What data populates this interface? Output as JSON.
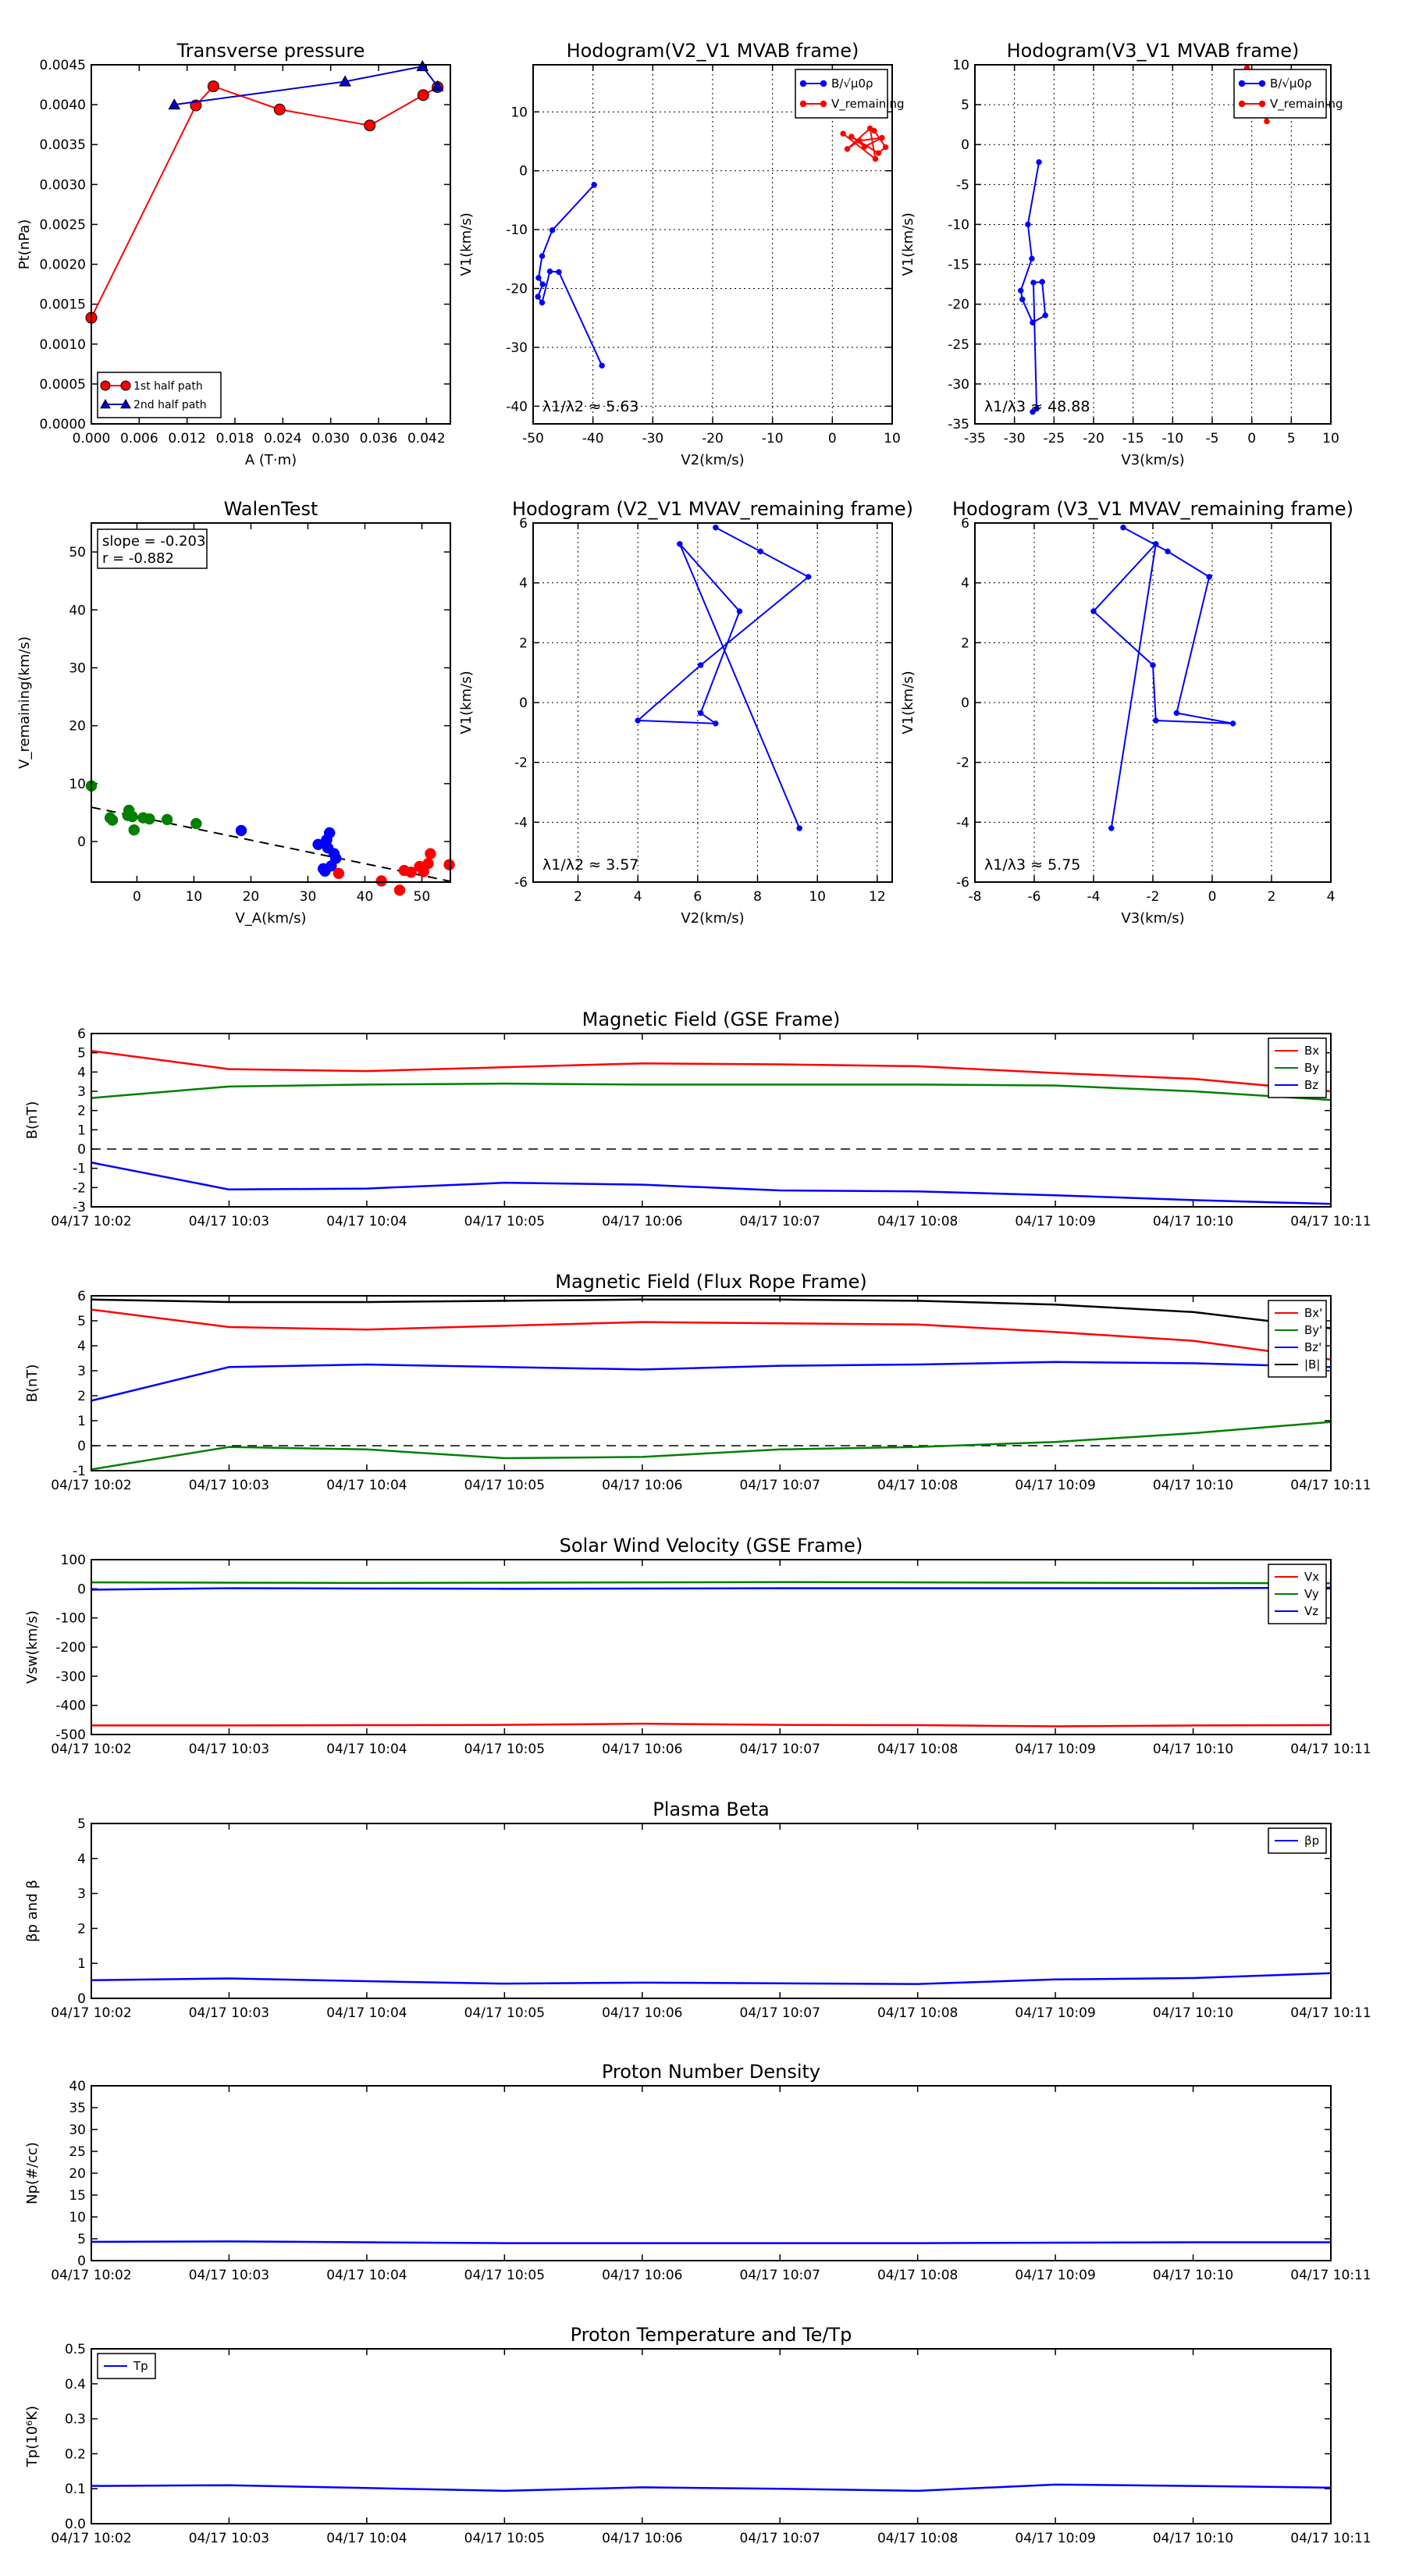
{
  "chart_data": [
    {
      "id": "tp",
      "type": "scatter",
      "title": "Transverse pressure",
      "xlabel": "A (T·m)",
      "ylabel": "Pt(nPa)",
      "xlim": [
        0.0,
        0.045
      ],
      "ylim": [
        0.0,
        0.0045
      ],
      "xticks": [
        0.0,
        0.006,
        0.012,
        0.018,
        0.024,
        0.03,
        0.036,
        0.042
      ],
      "xtick_labels": [
        "0.000",
        "0.006",
        "0.012",
        "0.018",
        "0.024",
        "0.030",
        "0.036",
        "0.042"
      ],
      "yticks": [
        0.0,
        0.0005,
        0.001,
        0.0015,
        0.002,
        0.0025,
        0.003,
        0.0035,
        0.004,
        0.0045
      ],
      "ytick_labels": [
        "0.0000",
        "0.0005",
        "0.0010",
        "0.0015",
        "0.0020",
        "0.0025",
        "0.0030",
        "0.0035",
        "0.0040",
        "0.0045"
      ],
      "grid": false,
      "legend": "lower-left",
      "series": [
        {
          "name": "1st half path",
          "color": "#ff0000",
          "marker": "circle",
          "x": [
            0.0,
            0.0131,
            0.0153,
            0.0236,
            0.0349,
            0.0416,
            0.0434
          ],
          "y": [
            0.00133,
            0.00399,
            0.00423,
            0.00394,
            0.00374,
            0.00412,
            0.00422
          ]
        },
        {
          "name": "2nd half path",
          "color": "#0000cc",
          "marker": "triangle",
          "x": [
            0.0104,
            0.0318,
            0.0415,
            0.0434
          ],
          "y": [
            0.004,
            0.00429,
            0.00448,
            0.00423
          ]
        }
      ]
    },
    {
      "id": "hodo1",
      "type": "line",
      "title": "Hodogram(V2_V1 MVAB frame)",
      "xlabel": "V2(km/s)",
      "ylabel": "V1(km/s)",
      "xlim": [
        -50,
        10
      ],
      "ylim": [
        -43,
        18
      ],
      "xticks": [
        -50,
        -40,
        -30,
        -20,
        -10,
        0,
        10
      ],
      "yticks": [
        -40,
        -30,
        -20,
        -10,
        0,
        10
      ],
      "grid": true,
      "legend": "top-right",
      "annotation": "λ1/λ2 ≈ 5.63",
      "series": [
        {
          "name": "B/√μ0ρ",
          "color": "#0000ff",
          "x": [
            -39.8,
            -46.8,
            -48.5,
            -49.1,
            -48.4,
            -49.2,
            -48.5,
            -47.2,
            -45.7,
            -38.5
          ],
          "y": [
            -2.4,
            -10.1,
            -14.5,
            -18.2,
            -19.3,
            -21.4,
            -22.4,
            -17.1,
            -17.2,
            -33.1
          ]
        },
        {
          "name": "V_remaining",
          "color": "#ff0000",
          "x": [
            1.8,
            7.2,
            6.3,
            2.5,
            4.5,
            8.3,
            5.4,
            3.2,
            7.7,
            8.9,
            7.0
          ],
          "y": [
            6.3,
            2.0,
            7.2,
            3.7,
            5.1,
            5.6,
            4.1,
            5.8,
            3.0,
            4.0,
            6.8
          ]
        }
      ]
    },
    {
      "id": "hodo2",
      "type": "line",
      "title": "Hodogram(V3_V1 MVAB frame)",
      "xlabel": "V3(km/s)",
      "ylabel": "V1(km/s)",
      "xlim": [
        -35,
        10
      ],
      "ylim": [
        -35,
        10
      ],
      "xticks": [
        -35,
        -30,
        -25,
        -20,
        -15,
        -10,
        -5,
        0,
        5,
        10
      ],
      "yticks": [
        -35,
        -30,
        -25,
        -20,
        -15,
        -10,
        -5,
        0,
        5,
        10
      ],
      "grid": true,
      "legend": "top-right",
      "annotation": "λ1/λ3 ≈ 48.88",
      "series": [
        {
          "name": "B/√μ0ρ",
          "color": "#0000ff",
          "x": [
            -26.9,
            -28.3,
            -27.8,
            -29.2,
            -29.0,
            -27.7,
            -26.1,
            -26.5,
            -27.6,
            -27.2,
            -27.7
          ],
          "y": [
            -2.2,
            -10.0,
            -14.3,
            -18.3,
            -19.4,
            -22.3,
            -21.4,
            -17.2,
            -17.3,
            -33.1,
            -33.5
          ]
        },
        {
          "name": "V_remaining",
          "color": "#ff0000",
          "x": [
            -1.2,
            0.3,
            1.9,
            -0.6,
            0.9
          ],
          "y": [
            8.7,
            6.5,
            2.9,
            9.6,
            5.2
          ]
        }
      ]
    },
    {
      "id": "walen",
      "type": "scatter",
      "title": "WalenTest",
      "xlabel": "V_A(km/s)",
      "ylabel": "V_remaining(km/s)",
      "xlim": [
        -8,
        55
      ],
      "ylim": [
        -7,
        55
      ],
      "xticks": [
        0,
        10,
        20,
        30,
        40,
        50
      ],
      "yticks": [
        0,
        10,
        20,
        30,
        40,
        50
      ],
      "grid": false,
      "annotation_lines": [
        "slope = -0.203",
        "r = -0.882"
      ],
      "fit": {
        "slope": -0.203,
        "intercept": 4.3
      },
      "series": [
        {
          "color": "#008000",
          "x": [
            -8.0,
            -4.7,
            -4.3,
            -1.6,
            -1.4,
            -0.8,
            -0.5,
            1.1,
            2.2,
            5.3,
            10.4
          ],
          "y": [
            9.6,
            4.1,
            3.7,
            4.5,
            5.4,
            4.3,
            2.0,
            4.1,
            3.9,
            3.8,
            3.1
          ]
        },
        {
          "color": "#0000ff",
          "x": [
            18.3,
            31.8,
            32.7,
            33.0,
            33.3,
            33.5,
            33.8,
            34.1,
            34.6,
            34.9
          ],
          "y": [
            1.9,
            -0.5,
            -4.7,
            -5.1,
            0.3,
            -1.1,
            1.5,
            -4.2,
            -2.1,
            -2.9
          ]
        },
        {
          "color": "#ff0000",
          "x": [
            35.4,
            42.9,
            46.1,
            46.9,
            48.1,
            49.6,
            50.3,
            51.1,
            51.5,
            54.8
          ],
          "y": [
            -5.5,
            -6.8,
            -8.4,
            -5.0,
            -5.3,
            -4.3,
            -5.2,
            -3.8,
            -2.1,
            -4.0
          ]
        }
      ]
    },
    {
      "id": "hodo3",
      "type": "line",
      "title": "Hodogram (V2_V1 MVAV_remaining frame)",
      "xlabel": "V2(km/s)",
      "ylabel": "V1(km/s)",
      "xlim": [
        0.5,
        12.5
      ],
      "ylim": [
        -6,
        6
      ],
      "xticks": [
        2,
        4,
        6,
        8,
        10,
        12
      ],
      "yticks": [
        -6,
        -4,
        -2,
        0,
        2,
        4,
        6
      ],
      "grid": true,
      "annotation": "λ1/λ2 ≈ 3.57",
      "series": [
        {
          "name": "",
          "color": "#0000ff",
          "x": [
            6.6,
            8.1,
            9.7,
            6.1,
            4.0,
            6.6,
            6.1,
            7.4,
            5.4,
            9.4
          ],
          "y": [
            5.85,
            5.05,
            4.2,
            1.25,
            -0.6,
            -0.7,
            -0.35,
            3.05,
            5.3,
            -4.2
          ]
        }
      ]
    },
    {
      "id": "hodo4",
      "type": "line",
      "title": "Hodogram (V3_V1 MVAV_remaining frame)",
      "xlabel": "V3(km/s)",
      "ylabel": "V1(km/s)",
      "xlim": [
        -8,
        4
      ],
      "ylim": [
        -6,
        6
      ],
      "xticks": [
        -8,
        -6,
        -4,
        -2,
        0,
        2,
        4
      ],
      "yticks": [
        -6,
        -4,
        -2,
        0,
        2,
        4,
        6
      ],
      "grid": true,
      "annotation": "λ1/λ3 ≈ 5.75",
      "series": [
        {
          "name": "",
          "color": "#0000ff",
          "x": [
            -3.0,
            -1.5,
            -0.1,
            -1.2,
            0.7,
            -1.9,
            -2.0,
            -4.0,
            -1.9,
            -3.4
          ],
          "y": [
            5.85,
            5.05,
            4.2,
            -0.35,
            -0.7,
            -0.6,
            1.25,
            3.05,
            5.3,
            -4.2
          ]
        }
      ]
    },
    {
      "id": "ts1",
      "type": "line",
      "title": "Magnetic Field (GSE Frame)",
      "ylabel": "B(nT)",
      "x": [
        "04/17 10:02",
        "04/17 10:03",
        "04/17 10:04",
        "04/17 10:05",
        "04/17 10:06",
        "04/17 10:07",
        "04/17 10:08",
        "04/17 10:09",
        "04/17 10:10",
        "04/17 10:11"
      ],
      "ylim": [
        -3,
        6
      ],
      "yticks": [
        -3,
        -2,
        -1,
        0,
        1,
        2,
        3,
        4,
        5,
        6
      ],
      "grid": false,
      "hline": 0,
      "legend": "top-right",
      "series": [
        {
          "name": "Bx",
          "color": "#ff0000",
          "values": [
            5.1,
            4.15,
            4.05,
            4.25,
            4.45,
            4.4,
            4.3,
            3.95,
            3.65,
            3.0
          ]
        },
        {
          "name": "By",
          "color": "#008000",
          "values": [
            2.65,
            3.25,
            3.35,
            3.4,
            3.35,
            3.35,
            3.35,
            3.3,
            3.0,
            2.55
          ]
        },
        {
          "name": "Bz",
          "color": "#0000ff",
          "values": [
            -0.7,
            -2.1,
            -2.05,
            -1.75,
            -1.85,
            -2.15,
            -2.2,
            -2.4,
            -2.65,
            -2.85
          ]
        }
      ]
    },
    {
      "id": "ts2",
      "type": "line",
      "title": "Magnetic Field (Flux Rope Frame)",
      "ylabel": "B(nT)",
      "x": [
        "04/17 10:02",
        "04/17 10:03",
        "04/17 10:04",
        "04/17 10:05",
        "04/17 10:06",
        "04/17 10:07",
        "04/17 10:08",
        "04/17 10:09",
        "04/17 10:10",
        "04/17 10:11"
      ],
      "ylim": [
        -1,
        6
      ],
      "yticks": [
        -1,
        0,
        1,
        2,
        3,
        4,
        5,
        6
      ],
      "grid": false,
      "hline": 0,
      "legend": "top-right",
      "series": [
        {
          "name": "Bx'",
          "color": "#ff0000",
          "values": [
            5.45,
            4.75,
            4.65,
            4.8,
            4.95,
            4.9,
            4.85,
            4.55,
            4.2,
            3.45
          ]
        },
        {
          "name": "By'",
          "color": "#008000",
          "values": [
            -0.95,
            -0.05,
            -0.15,
            -0.5,
            -0.45,
            -0.15,
            -0.05,
            0.15,
            0.5,
            0.95
          ]
        },
        {
          "name": "Bz'",
          "color": "#0000ff",
          "values": [
            1.8,
            3.15,
            3.25,
            3.15,
            3.05,
            3.2,
            3.25,
            3.35,
            3.3,
            3.15
          ]
        },
        {
          "name": "|B|",
          "color": "#000000",
          "values": [
            5.85,
            5.75,
            5.75,
            5.8,
            5.85,
            5.85,
            5.8,
            5.65,
            5.35,
            4.7
          ]
        }
      ]
    },
    {
      "id": "ts3",
      "type": "line",
      "title": "Solar Wind Velocity (GSE Frame)",
      "ylabel": "Vsw(km/s)",
      "x": [
        "04/17 10:02",
        "04/17 10:03",
        "04/17 10:04",
        "04/17 10:05",
        "04/17 10:06",
        "04/17 10:07",
        "04/17 10:08",
        "04/17 10:09",
        "04/17 10:10",
        "04/17 10:11"
      ],
      "ylim": [
        -500,
        100
      ],
      "yticks": [
        -500,
        -400,
        -300,
        -200,
        -100,
        0,
        100
      ],
      "grid": false,
      "legend": "top-right",
      "series": [
        {
          "name": "Vx",
          "color": "#ff0000",
          "values": [
            -469,
            -469,
            -468,
            -467,
            -463,
            -467,
            -468,
            -472,
            -469,
            -468
          ]
        },
        {
          "name": "Vy",
          "color": "#008000",
          "values": [
            22,
            21,
            20,
            21,
            22,
            23,
            22,
            21,
            20,
            19
          ]
        },
        {
          "name": "Vz",
          "color": "#0000ff",
          "values": [
            -3,
            2,
            1,
            0,
            1,
            2,
            2,
            2,
            2,
            4
          ]
        }
      ]
    },
    {
      "id": "ts4",
      "type": "line",
      "title": "Plasma Beta",
      "ylabel": "βp and β",
      "x": [
        "04/17 10:02",
        "04/17 10:03",
        "04/17 10:04",
        "04/17 10:05",
        "04/17 10:06",
        "04/17 10:07",
        "04/17 10:08",
        "04/17 10:09",
        "04/17 10:10",
        "04/17 10:11"
      ],
      "ylim": [
        0,
        5
      ],
      "yticks": [
        0,
        1,
        2,
        3,
        4,
        5
      ],
      "grid": false,
      "legend": "top-right",
      "series": [
        {
          "name": "βp",
          "color": "#0000ff",
          "values": [
            0.52,
            0.57,
            0.49,
            0.42,
            0.45,
            0.43,
            0.41,
            0.54,
            0.58,
            0.72
          ]
        }
      ]
    },
    {
      "id": "ts5",
      "type": "line",
      "title": "Proton Number Density",
      "ylabel": "Np(#/cc)",
      "x": [
        "04/17 10:02",
        "04/17 10:03",
        "04/17 10:04",
        "04/17 10:05",
        "04/17 10:06",
        "04/17 10:07",
        "04/17 10:08",
        "04/17 10:09",
        "04/17 10:10",
        "04/17 10:11"
      ],
      "ylim": [
        0,
        40
      ],
      "yticks": [
        0,
        5,
        10,
        15,
        20,
        25,
        30,
        35,
        40
      ],
      "grid": false,
      "series": [
        {
          "name": "",
          "color": "#0000ff",
          "values": [
            4.3,
            4.4,
            4.2,
            4.0,
            4.0,
            4.0,
            4.0,
            4.1,
            4.2,
            4.2
          ]
        }
      ]
    },
    {
      "id": "ts6",
      "type": "line",
      "title": "Proton Temperature and Te/Tp",
      "ylabel": "Tp(10⁶K)",
      "x": [
        "04/17 10:02",
        "04/17 10:03",
        "04/17 10:04",
        "04/17 10:05",
        "04/17 10:06",
        "04/17 10:07",
        "04/17 10:08",
        "04/17 10:09",
        "04/17 10:10",
        "04/17 10:11"
      ],
      "ylim": [
        0,
        0.5
      ],
      "yticks": [
        0.0,
        0.1,
        0.2,
        0.3,
        0.4,
        0.5
      ],
      "ytick_labels": [
        "0.0",
        "0.1",
        "0.2",
        "0.3",
        "0.4",
        "0.5"
      ],
      "grid": false,
      "legend": "top-left",
      "series": [
        {
          "name": "Tp",
          "color": "#0000ff",
          "values": [
            0.108,
            0.11,
            0.102,
            0.094,
            0.104,
            0.1,
            0.094,
            0.112,
            0.108,
            0.103
          ]
        }
      ]
    }
  ]
}
